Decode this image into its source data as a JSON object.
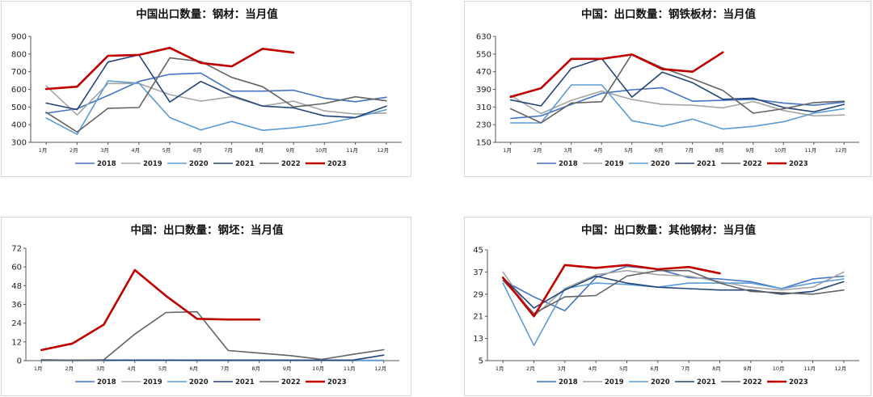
{
  "chart_data": [
    {
      "type": "line",
      "title": "中国出口数量：钢材：当月值",
      "categories": [
        "1月",
        "2月",
        "3月",
        "4月",
        "5月",
        "6月",
        "7月",
        "8月",
        "9月",
        "10月",
        "11月",
        "12月"
      ],
      "yticks": [
        "900",
        "800",
        "700",
        "600",
        "500",
        "400",
        "300"
      ],
      "ylim": [
        300,
        900
      ],
      "xlabel": "",
      "ylabel": "",
      "legend": "bottom",
      "series": [
        {
          "name": "2018",
          "color": "#4472C4",
          "width": 1.6,
          "values": [
            465,
            490,
            565,
            645,
            685,
            692,
            590,
            590,
            595,
            550,
            530,
            555
          ]
        },
        {
          "name": "2019",
          "color": "#A5A5A5",
          "width": 1.6,
          "values": [
            620,
            455,
            633,
            633,
            570,
            533,
            558,
            505,
            533,
            478,
            460,
            466
          ]
        },
        {
          "name": "2020",
          "color": "#5B9BD5",
          "width": 1.6,
          "values": [
            438,
            345,
            648,
            635,
            440,
            370,
            418,
            368,
            382,
            405,
            440,
            485
          ]
        },
        {
          "name": "2021",
          "color": "#264478",
          "width": 1.6,
          "values": [
            522,
            485,
            755,
            795,
            528,
            645,
            565,
            505,
            495,
            450,
            440,
            505
          ]
        },
        {
          "name": "2022",
          "color": "#636363",
          "width": 1.6,
          "values": [
            470,
            358,
            493,
            497,
            778,
            758,
            668,
            615,
            500,
            520,
            558,
            535
          ]
        },
        {
          "name": "2023",
          "color": "#C00000",
          "width": 2.6,
          "values": [
            602,
            615,
            790,
            795,
            835,
            750,
            730,
            830,
            808,
            null,
            null,
            null
          ]
        }
      ]
    },
    {
      "type": "line",
      "title": "中国：出口数量：钢铁板材：当月值",
      "categories": [
        "1月",
        "2月",
        "3月",
        "4月",
        "5月",
        "6月",
        "7月",
        "8月",
        "9月",
        "10月",
        "11月",
        "12月"
      ],
      "yticks": [
        "630",
        "550",
        "470",
        "390",
        "310",
        "230",
        "150"
      ],
      "ylim": [
        150,
        630
      ],
      "xlabel": "",
      "ylabel": "",
      "legend": "bottom",
      "series": [
        {
          "name": "2018",
          "color": "#4472C4",
          "width": 1.6,
          "values": [
            258,
            270,
            322,
            372,
            388,
            397,
            336,
            340,
            345,
            328,
            318,
            332
          ]
        },
        {
          "name": "2019",
          "color": "#A5A5A5",
          "width": 1.6,
          "values": [
            362,
            280,
            340,
            382,
            344,
            322,
            318,
            306,
            335,
            294,
            270,
            274
          ]
        },
        {
          "name": "2020",
          "color": "#5B9BD5",
          "width": 1.6,
          "values": [
            238,
            238,
            410,
            410,
            248,
            222,
            255,
            210,
            222,
            243,
            282,
            302
          ]
        },
        {
          "name": "2021",
          "color": "#264478",
          "width": 1.6,
          "values": [
            342,
            315,
            485,
            530,
            355,
            468,
            420,
            345,
            350,
            308,
            288,
            322
          ]
        },
        {
          "name": "2022",
          "color": "#636363",
          "width": 1.6,
          "values": [
            302,
            238,
            328,
            334,
            550,
            488,
            438,
            385,
            282,
            302,
            330,
            336
          ]
        },
        {
          "name": "2023",
          "color": "#C00000",
          "width": 2.6,
          "values": [
            356,
            395,
            528,
            528,
            548,
            482,
            470,
            558,
            null,
            null,
            null,
            null
          ]
        }
      ]
    },
    {
      "type": "line",
      "title": "中国：出口数量：钢坯：当月值",
      "categories": [
        "1月",
        "2月",
        "3月",
        "4月",
        "5月",
        "6月",
        "7月",
        "8月",
        "9月",
        "10月",
        "11月",
        "12月"
      ],
      "yticks": [
        "72",
        "60",
        "48",
        "36",
        "24",
        "12",
        "0"
      ],
      "ylim": [
        0,
        72
      ],
      "xlabel": "",
      "ylabel": "",
      "legend": "bottom",
      "series": [
        {
          "name": "2018",
          "color": "#4472C4",
          "width": 1.6,
          "values": [
            0.2,
            0.1,
            0.1,
            0.2,
            0.2,
            0.1,
            0.1,
            0.1,
            0.1,
            0.1,
            0.1,
            0.1
          ]
        },
        {
          "name": "2019",
          "color": "#A5A5A5",
          "width": 1.6,
          "values": [
            0.5,
            0.3,
            0.3,
            0.3,
            0.3,
            0.2,
            0.2,
            0.2,
            0.2,
            0.2,
            0.2,
            0.2
          ]
        },
        {
          "name": "2020",
          "color": "#5B9BD5",
          "width": 1.6,
          "values": [
            0.1,
            0.1,
            0.1,
            0.1,
            0.1,
            0.1,
            0.1,
            0.1,
            0.1,
            0.1,
            0.1,
            0.1
          ]
        },
        {
          "name": "2021",
          "color": "#264478",
          "width": 1.6,
          "values": [
            0.2,
            0.2,
            0.3,
            0.3,
            0.3,
            0.3,
            0.3,
            0.3,
            0.3,
            0.3,
            0.3,
            3.5
          ]
        },
        {
          "name": "2022",
          "color": "#636363",
          "width": 1.6,
          "values": [
            0.5,
            0.3,
            0.5,
            17,
            30.8,
            31.3,
            6.5,
            4.8,
            3.2,
            0.8,
            4.0,
            7.0
          ]
        },
        {
          "name": "2023",
          "color": "#C00000",
          "width": 2.6,
          "values": [
            6.8,
            11,
            23,
            58,
            41.5,
            26.8,
            26.3,
            26.3,
            null,
            null,
            null,
            null
          ]
        }
      ]
    },
    {
      "type": "line",
      "title": "中国：出口数量：其他钢材：当月值",
      "categories": [
        "1月",
        "2月",
        "3月",
        "4月",
        "5月",
        "6月",
        "7月",
        "8月",
        "9月",
        "10月",
        "11月",
        "12月"
      ],
      "yticks": [
        "45",
        "37",
        "29",
        "21",
        "13",
        "5"
      ],
      "ylim": [
        5,
        45
      ],
      "xlabel": "",
      "ylabel": "",
      "legend": "bottom",
      "series": [
        {
          "name": "2018",
          "color": "#4472C4",
          "width": 1.6,
          "values": [
            34,
            28,
            23,
            35,
            39,
            38,
            35,
            34.5,
            33.5,
            31,
            34.5,
            35.5
          ]
        },
        {
          "name": "2019",
          "color": "#A5A5A5",
          "width": 1.6,
          "values": [
            37,
            21,
            31,
            36,
            37.5,
            36,
            35.5,
            33.5,
            31.5,
            30.5,
            31.5,
            37
          ]
        },
        {
          "name": "2020",
          "color": "#5B9BD5",
          "width": 1.6,
          "values": [
            33,
            10.5,
            31,
            33,
            32.5,
            31.5,
            33,
            33,
            33,
            31,
            33,
            34.5
          ]
        },
        {
          "name": "2021",
          "color": "#264478",
          "width": 1.6,
          "values": [
            35,
            24,
            30.5,
            35.5,
            33,
            31.5,
            31,
            30.5,
            30.5,
            29,
            30,
            33.5
          ]
        },
        {
          "name": "2022",
          "color": "#636363",
          "width": 1.6,
          "values": [
            34,
            22,
            28,
            28.5,
            35.5,
            37.5,
            37.5,
            33,
            30,
            29.5,
            29,
            30.5
          ]
        },
        {
          "name": "2023",
          "color": "#C00000",
          "width": 2.6,
          "values": [
            35,
            21,
            39.5,
            38.5,
            39.5,
            38,
            38.8,
            36.5,
            null,
            null,
            null,
            null
          ]
        }
      ]
    }
  ]
}
